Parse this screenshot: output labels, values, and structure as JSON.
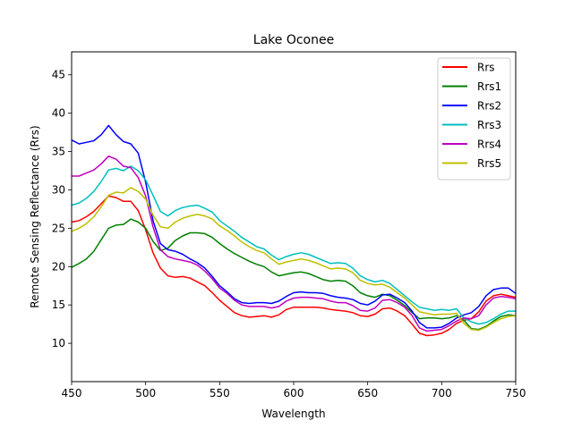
{
  "chart_data": {
    "type": "line",
    "title": "Lake Oconee",
    "xlabel": "Wavelength",
    "ylabel": "Remote Sensing Reflectance (Rrs)",
    "xlim": [
      450,
      750
    ],
    "ylim": [
      5,
      48
    ],
    "xticks": [
      450,
      500,
      550,
      600,
      650,
      700,
      750
    ],
    "yticks": [
      10,
      15,
      20,
      25,
      30,
      35,
      40,
      45
    ],
    "grid": false,
    "legend_position": "top-right",
    "x": [
      450,
      455,
      460,
      465,
      470,
      475,
      480,
      485,
      490,
      495,
      500,
      505,
      510,
      515,
      520,
      525,
      530,
      535,
      540,
      545,
      550,
      555,
      560,
      565,
      570,
      575,
      580,
      585,
      590,
      595,
      600,
      605,
      610,
      615,
      620,
      625,
      630,
      635,
      640,
      645,
      650,
      655,
      660,
      665,
      670,
      675,
      680,
      685,
      690,
      695,
      700,
      705,
      710,
      715,
      720,
      725,
      730,
      735,
      740,
      745,
      750
    ],
    "series": [
      {
        "name": "Rrs",
        "color": "#ff0000",
        "values": [
          25.8,
          26.0,
          26.5,
          27.2,
          28.2,
          29.2,
          29.0,
          28.5,
          28.5,
          27.3,
          24.8,
          21.8,
          19.8,
          18.8,
          18.6,
          18.7,
          18.5,
          18.0,
          17.5,
          16.6,
          15.6,
          14.8,
          14.0,
          13.6,
          13.4,
          13.5,
          13.6,
          13.4,
          13.7,
          14.4,
          14.7,
          14.7,
          14.7,
          14.7,
          14.6,
          14.4,
          14.3,
          14.2,
          14.0,
          13.6,
          13.5,
          13.8,
          14.5,
          14.6,
          14.2,
          13.6,
          12.5,
          11.3,
          11.0,
          11.1,
          11.3,
          11.8,
          12.6,
          13.0,
          13.2,
          14.1,
          15.5,
          16.2,
          16.4,
          16.2,
          16.0
        ]
      },
      {
        "name": "Rrs1",
        "color": "#008000",
        "values": [
          19.9,
          20.4,
          21.0,
          22.0,
          23.5,
          25.0,
          25.4,
          25.5,
          26.2,
          25.8,
          25.0,
          23.3,
          22.1,
          22.4,
          23.4,
          24.0,
          24.4,
          24.4,
          24.3,
          23.8,
          23.0,
          22.3,
          21.7,
          21.2,
          20.7,
          20.3,
          20.0,
          19.3,
          18.8,
          19.0,
          19.2,
          19.3,
          19.1,
          18.7,
          18.3,
          18.1,
          18.2,
          18.1,
          17.5,
          16.6,
          16.2,
          16.0,
          16.4,
          16.2,
          15.6,
          14.9,
          14.0,
          13.2,
          13.3,
          13.3,
          13.2,
          13.3,
          13.6,
          13.0,
          11.9,
          11.8,
          12.2,
          12.9,
          13.5,
          13.7,
          13.6
        ]
      },
      {
        "name": "Rrs2",
        "color": "#0000ff",
        "values": [
          36.5,
          36.0,
          36.2,
          36.4,
          37.2,
          38.4,
          37.2,
          36.3,
          36.0,
          34.8,
          31.0,
          26.0,
          23.0,
          22.2,
          22.0,
          21.6,
          21.0,
          20.5,
          19.8,
          18.7,
          17.5,
          16.7,
          15.8,
          15.3,
          15.2,
          15.3,
          15.3,
          15.2,
          15.5,
          16.1,
          16.6,
          16.7,
          16.6,
          16.6,
          16.5,
          16.2,
          16.0,
          15.9,
          15.7,
          15.2,
          15.0,
          15.5,
          16.3,
          16.4,
          15.9,
          15.3,
          14.2,
          12.7,
          12.0,
          12.0,
          12.1,
          12.6,
          13.3,
          13.7,
          14.0,
          14.8,
          16.2,
          17.0,
          17.2,
          17.2,
          16.5
        ]
      },
      {
        "name": "Rrs3",
        "color": "#00bfbf",
        "values": [
          28.0,
          28.3,
          28.9,
          29.8,
          31.1,
          32.6,
          32.8,
          32.5,
          33.1,
          32.5,
          31.3,
          29.3,
          27.2,
          26.6,
          27.3,
          27.7,
          27.9,
          28.0,
          27.6,
          27.1,
          26.0,
          25.3,
          24.6,
          23.8,
          23.2,
          22.6,
          22.3,
          21.5,
          20.9,
          21.3,
          21.6,
          21.8,
          21.6,
          21.2,
          20.8,
          20.4,
          20.5,
          20.4,
          19.8,
          18.8,
          18.3,
          18.0,
          18.2,
          17.8,
          17.0,
          16.2,
          15.4,
          14.7,
          14.5,
          14.3,
          14.4,
          14.3,
          14.5,
          13.3,
          12.8,
          12.5,
          12.7,
          13.2,
          13.8,
          14.2,
          14.2
        ]
      },
      {
        "name": "Rrs4",
        "color": "#bf00bf",
        "values": [
          31.8,
          31.8,
          32.2,
          32.6,
          33.4,
          34.4,
          34.0,
          33.1,
          32.9,
          31.6,
          29.2,
          25.2,
          22.2,
          21.3,
          21.0,
          20.8,
          20.6,
          20.2,
          19.4,
          18.4,
          17.2,
          16.5,
          15.6,
          15.0,
          14.8,
          14.8,
          14.8,
          14.6,
          14.8,
          15.5,
          15.9,
          16.0,
          16.0,
          15.9,
          15.8,
          15.5,
          15.3,
          15.3,
          14.9,
          14.3,
          14.2,
          14.6,
          15.6,
          15.7,
          15.3,
          14.7,
          13.6,
          12.0,
          11.6,
          11.7,
          11.8,
          12.3,
          12.9,
          13.3,
          13.2,
          13.6,
          15.0,
          15.9,
          16.1,
          16.0,
          15.8
        ]
      },
      {
        "name": "Rrs5",
        "color": "#bfbf00",
        "values": [
          24.6,
          25.0,
          25.6,
          26.5,
          27.8,
          29.3,
          29.7,
          29.6,
          30.3,
          29.8,
          28.8,
          26.7,
          25.2,
          25.0,
          25.8,
          26.3,
          26.6,
          26.8,
          26.6,
          26.2,
          25.3,
          24.7,
          24.0,
          23.2,
          22.6,
          22.1,
          21.8,
          21.0,
          20.3,
          20.6,
          20.8,
          21.0,
          20.8,
          20.5,
          20.1,
          19.7,
          19.8,
          19.7,
          19.2,
          18.2,
          17.8,
          17.6,
          17.7,
          17.3,
          16.6,
          15.9,
          15.0,
          14.1,
          13.9,
          13.7,
          13.8,
          13.8,
          13.9,
          12.6,
          11.8,
          11.7,
          12.1,
          12.7,
          13.2,
          13.5,
          13.6
        ]
      }
    ]
  }
}
